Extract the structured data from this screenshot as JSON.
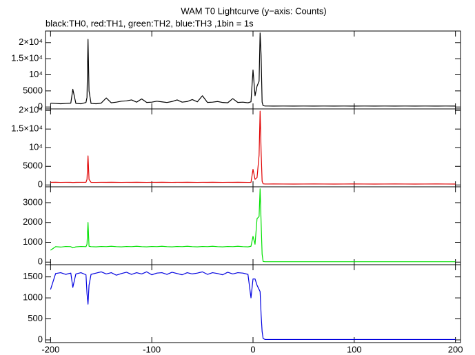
{
  "chart_data": [
    {
      "type": "line",
      "title": "WAM T0 Lightcurve (y−axis: Counts)",
      "subtitle": "black:TH0, red:TH1, green:TH2, blue:TH3 ,1bin = 1s",
      "x": [
        -200,
        -195,
        -190,
        -185,
        -180,
        -178,
        -175,
        -170,
        -165,
        -164,
        -163,
        -162,
        -160,
        -155,
        -150,
        -145,
        -140,
        -135,
        -130,
        -125,
        -120,
        -115,
        -110,
        -105,
        -100,
        -95,
        -90,
        -85,
        -80,
        -75,
        -70,
        -65,
        -60,
        -55,
        -50,
        -45,
        -40,
        -35,
        -30,
        -25,
        -20,
        -15,
        -10,
        -5,
        -2,
        0,
        2,
        4,
        6,
        7,
        8,
        9,
        10,
        12,
        15,
        20,
        30,
        40,
        50,
        60,
        70,
        80,
        90,
        100,
        110,
        120,
        130,
        140,
        150,
        160,
        170,
        180,
        190,
        200
      ],
      "series": [
        {
          "name": "TH0",
          "color": "#000000",
          "values": [
            1200,
            1100,
            1000,
            1100,
            1200,
            5500,
            1100,
            1000,
            1400,
            3000,
            21000,
            5000,
            1100,
            1000,
            1200,
            2800,
            1300,
            1500,
            1800,
            1900,
            2200,
            1500,
            2500,
            1400,
            1500,
            1800,
            1600,
            1400,
            1700,
            2200,
            1500,
            1700,
            2300,
            1600,
            3500,
            1400,
            1500,
            1700,
            1400,
            1300,
            2600,
            1400,
            1500,
            1300,
            1600,
            11500,
            3500,
            6500,
            8000,
            23000,
            16000,
            1500,
            400,
            300,
            300,
            280,
            300,
            290,
            300,
            280,
            300,
            290,
            300,
            280,
            300,
            290,
            300,
            280,
            300,
            290,
            300,
            280,
            300,
            290
          ]
        }
      ],
      "xlim": [
        -205,
        205
      ],
      "ylim": [
        -600,
        23600
      ],
      "yticks": [
        0,
        5000,
        {
          "value": 10000,
          "label": "10⁴"
        },
        {
          "value": 15000,
          "label": "1.5×10⁴"
        },
        {
          "value": 20000,
          "label": "2×10⁴"
        }
      ]
    },
    {
      "type": "line",
      "x": [
        -200,
        -195,
        -190,
        -185,
        -180,
        -178,
        -175,
        -170,
        -165,
        -164,
        -163,
        -162,
        -160,
        -155,
        -150,
        -145,
        -140,
        -135,
        -130,
        -125,
        -120,
        -115,
        -110,
        -105,
        -100,
        -95,
        -90,
        -85,
        -80,
        -75,
        -70,
        -65,
        -60,
        -55,
        -50,
        -45,
        -40,
        -35,
        -30,
        -25,
        -20,
        -15,
        -10,
        -5,
        -2,
        0,
        2,
        4,
        6,
        7,
        8,
        9,
        10,
        12,
        15,
        20,
        30,
        40,
        50,
        60,
        70,
        80,
        90,
        100,
        110,
        120,
        130,
        140,
        150,
        160,
        170,
        180,
        190,
        200
      ],
      "series": [
        {
          "name": "TH1",
          "color": "#e00000",
          "values": [
            700,
            720,
            690,
            710,
            700,
            650,
            700,
            710,
            720,
            1500,
            7800,
            1500,
            700,
            690,
            710,
            700,
            720,
            700,
            690,
            710,
            700,
            720,
            700,
            690,
            710,
            700,
            720,
            700,
            690,
            710,
            700,
            720,
            700,
            690,
            710,
            700,
            720,
            700,
            690,
            710,
            700,
            720,
            700,
            690,
            700,
            4200,
            1500,
            2000,
            8000,
            19800,
            9000,
            1000,
            300,
            250,
            250,
            260,
            250,
            240,
            250,
            260,
            250,
            240,
            250,
            260,
            250,
            240,
            250,
            260,
            250,
            240,
            250,
            260,
            250,
            240
          ]
        }
      ],
      "xlim": [
        -205,
        205
      ],
      "ylim": [
        -500,
        20400
      ],
      "yticks": [
        0,
        5000,
        {
          "value": 10000,
          "label": "10⁴"
        },
        {
          "value": 15000,
          "label": "1.5×10⁴"
        },
        {
          "value": 20000,
          "label": "2×10⁴"
        }
      ]
    },
    {
      "type": "line",
      "x": [
        -200,
        -195,
        -190,
        -185,
        -180,
        -178,
        -175,
        -170,
        -165,
        -164,
        -163,
        -162,
        -160,
        -155,
        -150,
        -145,
        -140,
        -135,
        -130,
        -125,
        -120,
        -115,
        -110,
        -105,
        -100,
        -95,
        -90,
        -85,
        -80,
        -75,
        -70,
        -65,
        -60,
        -55,
        -50,
        -45,
        -40,
        -35,
        -30,
        -25,
        -20,
        -15,
        -10,
        -5,
        -2,
        0,
        2,
        4,
        6,
        7,
        8,
        9,
        10,
        12,
        15,
        20,
        30,
        40,
        50,
        60,
        70,
        80,
        90,
        100,
        110,
        120,
        130,
        140,
        150,
        160,
        170,
        180,
        190,
        200
      ],
      "series": [
        {
          "name": "TH2",
          "color": "#00e000",
          "values": [
            600,
            780,
            760,
            790,
            780,
            720,
            770,
            790,
            780,
            900,
            2000,
            800,
            780,
            770,
            790,
            780,
            800,
            780,
            770,
            790,
            780,
            800,
            780,
            770,
            790,
            780,
            800,
            780,
            770,
            790,
            780,
            800,
            780,
            770,
            790,
            780,
            800,
            780,
            770,
            790,
            780,
            800,
            780,
            770,
            800,
            1300,
            900,
            2200,
            2300,
            3700,
            2000,
            400,
            30,
            20,
            20,
            20,
            20,
            20,
            20,
            20,
            20,
            20,
            20,
            20,
            20,
            20,
            20,
            20,
            20,
            20,
            20,
            20,
            20,
            20
          ]
        }
      ],
      "xlim": [
        -205,
        205
      ],
      "ylim": [
        -130,
        3800
      ],
      "yticks": [
        0,
        1000,
        2000,
        3000
      ]
    },
    {
      "type": "line",
      "x": [
        -200,
        -195,
        -190,
        -185,
        -180,
        -178,
        -175,
        -170,
        -165,
        -164,
        -163,
        -162,
        -160,
        -155,
        -150,
        -145,
        -140,
        -135,
        -130,
        -125,
        -120,
        -115,
        -110,
        -105,
        -100,
        -95,
        -90,
        -85,
        -80,
        -75,
        -70,
        -65,
        -60,
        -55,
        -50,
        -45,
        -40,
        -35,
        -30,
        -25,
        -20,
        -15,
        -10,
        -5,
        -2,
        0,
        2,
        4,
        6,
        7,
        8,
        9,
        10,
        12,
        15,
        20,
        30,
        40,
        50,
        60,
        70,
        80,
        90,
        100,
        110,
        120,
        130,
        140,
        150,
        160,
        170,
        180,
        190,
        200
      ],
      "series": [
        {
          "name": "TH3",
          "color": "#0000e0",
          "values": [
            1200,
            1580,
            1600,
            1560,
            1590,
            1250,
            1570,
            1600,
            1550,
            1100,
            850,
            1300,
            1560,
            1590,
            1620,
            1570,
            1600,
            1540,
            1580,
            1610,
            1560,
            1600,
            1570,
            1620,
            1550,
            1590,
            1600,
            1560,
            1610,
            1580,
            1550,
            1600,
            1570,
            1590,
            1620,
            1560,
            1600,
            1580,
            1550,
            1610,
            1570,
            1600,
            1590,
            1560,
            1000,
            1450,
            1450,
            1300,
            1200,
            1150,
            600,
            200,
            30,
            10,
            10,
            10,
            10,
            10,
            10,
            10,
            10,
            10,
            10,
            10,
            10,
            10,
            10,
            10,
            10,
            10,
            10,
            10,
            10,
            10
          ]
        }
      ],
      "xlim": [
        -205,
        205
      ],
      "ylim": [
        -65,
        1790
      ],
      "yticks": [
        0,
        500,
        1000,
        1500
      ],
      "xticks": [
        -200,
        -100,
        0,
        100,
        200
      ]
    }
  ]
}
